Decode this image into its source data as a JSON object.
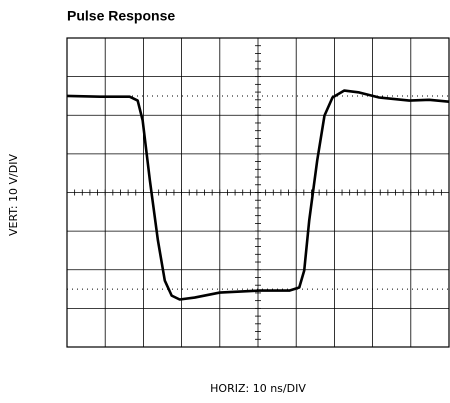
{
  "chart_data": {
    "type": "line",
    "title": "Pulse Response",
    "x_label": "HORIZ: 10 ns/DIV",
    "y_label": "VERT: 10 V/DIV",
    "x": [
      0,
      8.6,
      16.4,
      18.5,
      19.8,
      21.7,
      23.8,
      25.6,
      27.4,
      29.5,
      33.4,
      40,
      50.4,
      58.2,
      60.8,
      62.1,
      63.4,
      65.5,
      67.4,
      69.5,
      72.6,
      76.5,
      81.7,
      89.6,
      94.8,
      100
    ],
    "series": [
      {
        "color": "#000000",
        "values": [
          25,
          24.8,
          24.8,
          23.8,
          18.7,
          3.1,
          -12.4,
          -22.8,
          -26.7,
          -27.7,
          -27.2,
          -25.9,
          -25.4,
          -25.4,
          -24.6,
          -20.2,
          -7.3,
          8.3,
          19.9,
          24.6,
          26.4,
          25.9,
          24.6,
          23.8,
          24.0,
          23.5
        ]
      }
    ],
    "ref_lines": [
      25,
      -25
    ],
    "xlim": [
      0,
      100
    ],
    "ylim": [
      -40,
      40
    ],
    "xticks": [
      0,
      10,
      20,
      30,
      40,
      50,
      60,
      70,
      80,
      90,
      100
    ],
    "yticks": [
      -40,
      -30,
      -20,
      -10,
      0,
      10,
      20,
      30,
      40
    ],
    "grid": true
  }
}
